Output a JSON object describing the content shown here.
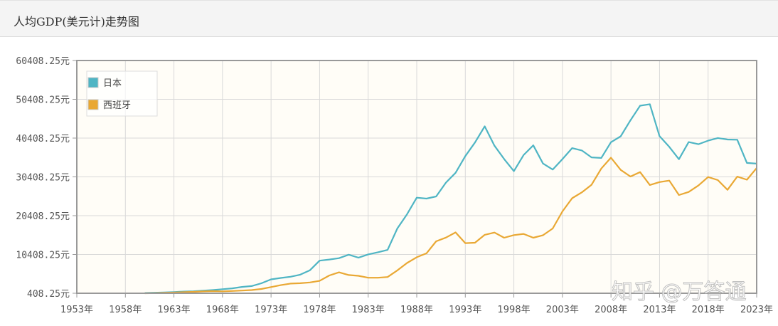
{
  "header": {
    "title": "人均GDP(美元计)走势图"
  },
  "watermark": "知乎 @万答通",
  "chart_data": {
    "type": "line",
    "title": "人均GDP(美元计)走势图",
    "xlabel": "",
    "ylabel": "",
    "x_ticks": [
      "1953年",
      "1958年",
      "1963年",
      "1968年",
      "1973年",
      "1978年",
      "1983年",
      "1988年",
      "1993年",
      "1998年",
      "2003年",
      "2008年",
      "2013年",
      "2018年",
      "2023年"
    ],
    "y_ticks": [
      "408.25元",
      "10408.25元",
      "20408.25元",
      "30408.25元",
      "40408.25元",
      "50408.25元",
      "60408.25元"
    ],
    "xlim": [
      1953,
      2023
    ],
    "ylim": [
      408.25,
      60408.25
    ],
    "grid": true,
    "legend_position": "top-left",
    "x": [
      1960,
      1961,
      1962,
      1963,
      1964,
      1965,
      1966,
      1967,
      1968,
      1969,
      1970,
      1971,
      1972,
      1973,
      1974,
      1975,
      1976,
      1977,
      1978,
      1979,
      1980,
      1981,
      1982,
      1983,
      1984,
      1985,
      1986,
      1987,
      1988,
      1989,
      1990,
      1991,
      1992,
      1993,
      1994,
      1995,
      1996,
      1997,
      1998,
      1999,
      2000,
      2001,
      2002,
      2003,
      2004,
      2005,
      2006,
      2007,
      2008,
      2009,
      2010,
      2011,
      2012,
      2013,
      2014,
      2015,
      2016,
      2017,
      2018,
      2019,
      2020,
      2021,
      2022,
      2023
    ],
    "series": [
      {
        "name": "日本",
        "color": "#4fb5c4",
        "values": [
          480,
          560,
          630,
          720,
          840,
          920,
          1060,
          1230,
          1450,
          1670,
          2040,
          2270,
          2970,
          3990,
          4350,
          4660,
          5200,
          6340,
          8820,
          9100,
          9460,
          10360,
          9580,
          10420,
          10980,
          11580,
          17110,
          20750,
          25050,
          24810,
          25360,
          28930,
          31460,
          35770,
          39270,
          43440,
          38440,
          35020,
          31900,
          36030,
          38530,
          33850,
          32290,
          35000,
          37820,
          37220,
          35430,
          35280,
          39340,
          40860,
          44970,
          48760,
          49150,
          40900,
          38160,
          34960,
          39380,
          38830,
          39750,
          40420,
          40040,
          39990,
          34010,
          33830
        ]
      },
      {
        "name": "西班牙",
        "color": "#e9a834",
        "values": [
          400,
          450,
          520,
          600,
          680,
          770,
          880,
          960,
          910,
          1000,
          1110,
          1240,
          1500,
          2000,
          2500,
          2900,
          3000,
          3200,
          3600,
          5000,
          5800,
          5100,
          4900,
          4400,
          4400,
          4600,
          6300,
          8200,
          9700,
          10700,
          13800,
          14750,
          16100,
          13330,
          13440,
          15470,
          16060,
          14720,
          15400,
          15720,
          14720,
          15360,
          17110,
          21500,
          24900,
          26430,
          28380,
          32550,
          35370,
          32200,
          30500,
          31630,
          28320,
          29060,
          29460,
          25730,
          26510,
          28190,
          30380,
          29580,
          27060,
          30490,
          29670,
          32680
        ]
      }
    ]
  }
}
